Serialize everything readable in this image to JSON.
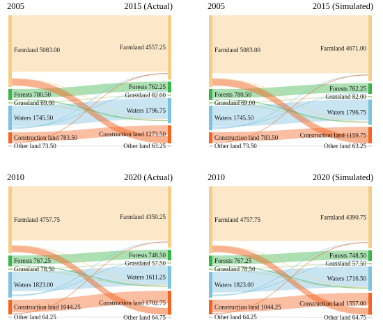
{
  "colors": {
    "Farmland": "#f8cc88",
    "Forests": "#39b54a",
    "Grassland": "#a8d08d",
    "Waters": "#7ec2e0",
    "Construction land": "#f26522",
    "Other land": "#d9d9d9"
  },
  "panels": [
    {
      "left_year": "2005",
      "right_title": "2015 (Actual)",
      "left_nodes": [
        {
          "name": "Farmland",
          "value": 5083.0,
          "label": "Farmland 5083.00"
        },
        {
          "name": "Forests",
          "value": 780.5,
          "label": "Forests 780.50"
        },
        {
          "name": "Grassland",
          "value": 69.0,
          "label": "Grassland 69.00"
        },
        {
          "name": "Waters",
          "value": 1745.5,
          "label": "Waters 1745.50"
        },
        {
          "name": "Construction land",
          "value": 783.5,
          "label": "Construction land 783.50"
        },
        {
          "name": "Other land",
          "value": 73.5,
          "label": "Other land 73.50"
        }
      ],
      "right_nodes": [
        {
          "name": "Farmland",
          "value": 4557.25,
          "label": "Farmland 4557.25"
        },
        {
          "name": "Forests",
          "value": 762.25,
          "label": "Forests 762.25"
        },
        {
          "name": "Grassland",
          "value": 82.0,
          "label": "Grassland 82.00"
        },
        {
          "name": "Waters",
          "value": 1796.75,
          "label": "Waters 1796.75"
        },
        {
          "name": "Construction land",
          "value": 1273.5,
          "label": "Construction land 1273.50"
        },
        {
          "name": "Other land",
          "value": 63.25,
          "label": "Other land 63.25"
        }
      ]
    },
    {
      "left_year": "2005",
      "right_title": "2015 (Simulated)",
      "left_nodes": [
        {
          "name": "Farmland",
          "value": 5083.0,
          "label": "Farmland 5083.00"
        },
        {
          "name": "Forests",
          "value": 780.5,
          "label": "Forests 780.50"
        },
        {
          "name": "Grassland",
          "value": 69.0,
          "label": "Grassland 69.00"
        },
        {
          "name": "Waters",
          "value": 1745.5,
          "label": "Waters 1745.50"
        },
        {
          "name": "Construction land",
          "value": 783.5,
          "label": "Construction land 783.50"
        },
        {
          "name": "Other land",
          "value": 73.5,
          "label": "Other land 73.50"
        }
      ],
      "right_nodes": [
        {
          "name": "Farmland",
          "value": 4671.0,
          "label": "Farmland 4671.00"
        },
        {
          "name": "Forests",
          "value": 762.25,
          "label": "Forests 762.25"
        },
        {
          "name": "Grassland",
          "value": 82.0,
          "label": "Grassland 82.00"
        },
        {
          "name": "Waters",
          "value": 1796.75,
          "label": "Waters 1796.75"
        },
        {
          "name": "Construction land",
          "value": 1159.75,
          "label": "Construction land 1159.75"
        },
        {
          "name": "Other land",
          "value": 63.25,
          "label": "Other land 63.25"
        }
      ]
    },
    {
      "left_year": "2010",
      "right_title": "2020 (Actual)",
      "left_nodes": [
        {
          "name": "Farmland",
          "value": 4757.75,
          "label": "Farmland 4757.75"
        },
        {
          "name": "Forests",
          "value": 767.25,
          "label": "Forests 767.25"
        },
        {
          "name": "Grassland",
          "value": 78.5,
          "label": "Grassland 78.50"
        },
        {
          "name": "Waters",
          "value": 1823.0,
          "label": "Waters 1823.00"
        },
        {
          "name": "Construction land",
          "value": 1044.25,
          "label": "Construction land 1044.25"
        },
        {
          "name": "Other land",
          "value": 64.25,
          "label": "Other land 64.25"
        }
      ],
      "right_nodes": [
        {
          "name": "Farmland",
          "value": 4350.25,
          "label": "Farmland 4350.25"
        },
        {
          "name": "Forests",
          "value": 748.5,
          "label": "Forests 748.50"
        },
        {
          "name": "Grassland",
          "value": 57.5,
          "label": "Grassland 57.50"
        },
        {
          "name": "Waters",
          "value": 1611.25,
          "label": "Waters 1611.25"
        },
        {
          "name": "Construction land",
          "value": 1702.75,
          "label": "Construction land 1702.75"
        },
        {
          "name": "Other land",
          "value": 64.75,
          "label": "Other land 64.75"
        }
      ]
    },
    {
      "left_year": "2010",
      "right_title": "2020 (Simulated)",
      "left_nodes": [
        {
          "name": "Farmland",
          "value": 4757.75,
          "label": "Farmland 4757.75"
        },
        {
          "name": "Forests",
          "value": 767.25,
          "label": "Forests 767.25"
        },
        {
          "name": "Grassland",
          "value": 78.5,
          "label": "Grassland 78.50"
        },
        {
          "name": "Waters",
          "value": 1823.0,
          "label": "Waters 1823.00"
        },
        {
          "name": "Construction land",
          "value": 1044.25,
          "label": "Construction land 1044.25"
        },
        {
          "name": "Other land",
          "value": 64.25,
          "label": "Other land 64.25"
        }
      ],
      "right_nodes": [
        {
          "name": "Farmland",
          "value": 4390.75,
          "label": "Farmland 4390.75"
        },
        {
          "name": "Forests",
          "value": 748.5,
          "label": "Forests 748.50"
        },
        {
          "name": "Grassland",
          "value": 57.5,
          "label": "Grassland 57.50"
        },
        {
          "name": "Waters",
          "value": 1716.5,
          "label": "Waters 1716.50"
        },
        {
          "name": "Construction land",
          "value": 1557.0,
          "label": "Construction land 1557.00"
        },
        {
          "name": "Other land",
          "value": 64.75,
          "label": "Other land 64.75"
        }
      ]
    }
  ]
}
